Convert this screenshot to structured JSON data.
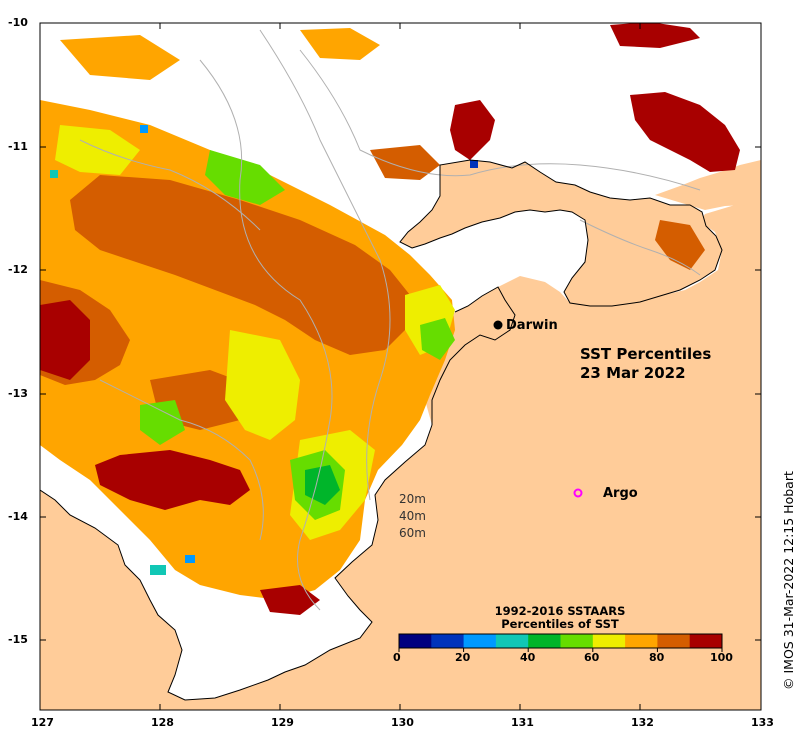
{
  "map": {
    "title_line1": "SST Percentiles",
    "title_line2": "23 Mar 2022",
    "credit": "© IMOS 31-Mar-2022 12:15 Hobart",
    "lon_ticks": [
      "127",
      "128",
      "129",
      "130",
      "131",
      "132",
      "133"
    ],
    "lat_ticks": [
      "-10",
      "-11",
      "-12",
      "-13",
      "-14",
      "-15"
    ],
    "places": [
      {
        "name": "Darwin",
        "symbol": "black-dot"
      },
      {
        "name": "Argo",
        "symbol": "magenta-ring"
      }
    ],
    "depth_contours": [
      "20m",
      "40m",
      "60m"
    ],
    "colors": {
      "land": "#ffcc99",
      "ocean_no_data": "#ffffff",
      "contour": "#b0b0b0",
      "coastline": "#000000",
      "argo": "#ff00ff"
    },
    "colorbar": {
      "title_line1": "1992-2016 SSTAARS",
      "title_line2": "Percentiles of SST",
      "tick_labels": [
        "0",
        "20",
        "40",
        "60",
        "80",
        "100"
      ],
      "colors": [
        "#00007f",
        "#0033bb",
        "#0099ff",
        "#11c7b5",
        "#00b52a",
        "#66dd00",
        "#eeee00",
        "#ffa500",
        "#d45d00",
        "#a80000"
      ]
    }
  }
}
